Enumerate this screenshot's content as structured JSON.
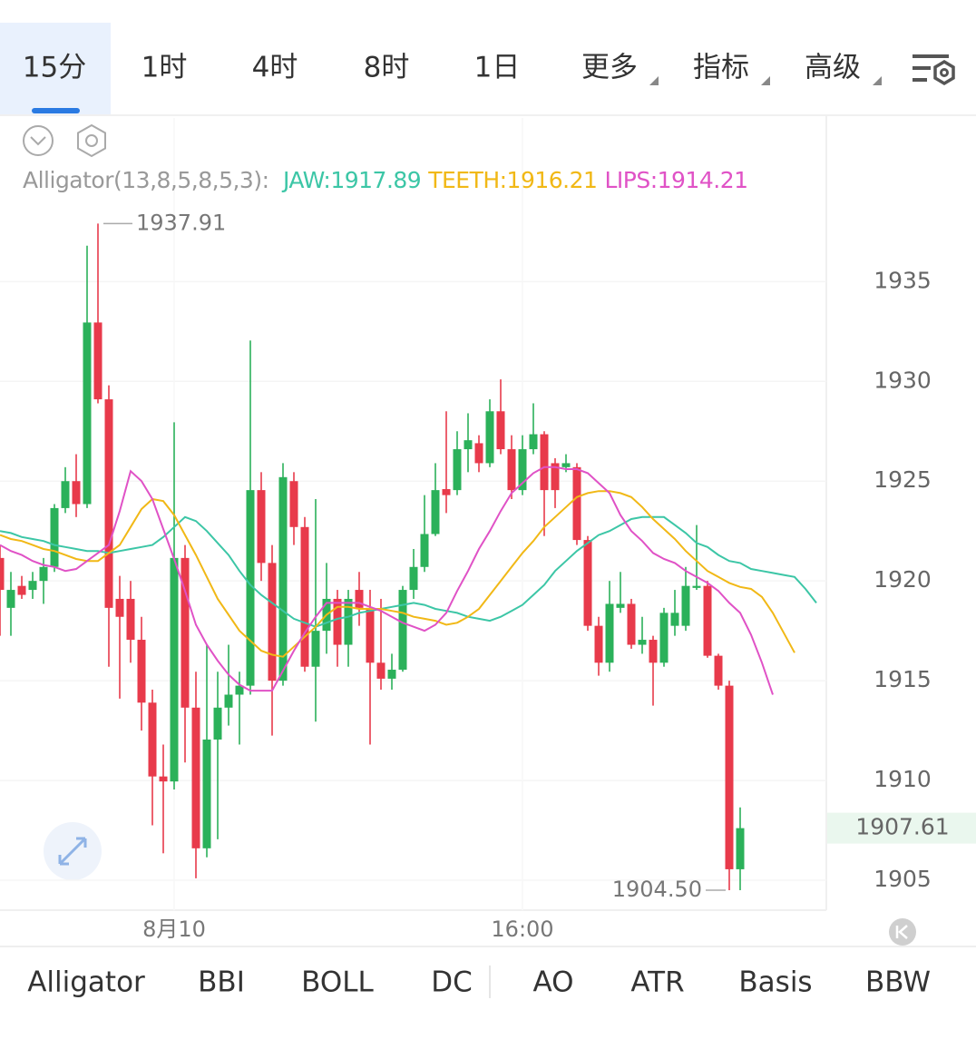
{
  "header": {
    "tabs": [
      "15分",
      "1时",
      "4时",
      "8时",
      "1日",
      "更多",
      "指标",
      "高级"
    ]
  },
  "indicator_tabs": [
    "Alligator",
    "BBI",
    "BOLL",
    "DC",
    "AO",
    "ATR",
    "Basis",
    "BBW"
  ],
  "chart_data": {
    "type": "candlestick",
    "indicator_label": "Alligator(13,8,5,8,5,3):",
    "categories": [
      null,
      null,
      null,
      null,
      null,
      null,
      null,
      null,
      null,
      null,
      null,
      null,
      null,
      null,
      null,
      null,
      "8月10",
      null,
      null,
      null,
      null,
      null,
      null,
      null,
      null,
      null,
      null,
      null,
      null,
      null,
      null,
      null,
      null,
      null,
      null,
      null,
      null,
      null,
      null,
      null,
      null,
      null,
      null,
      null,
      null,
      null,
      null,
      null,
      "16:00",
      null,
      null,
      null,
      null,
      null,
      null,
      null,
      null,
      null,
      null,
      null,
      null,
      null,
      null,
      null,
      null,
      null,
      null,
      null,
      null,
      null,
      null,
      null,
      null,
      null,
      null,
      null
    ],
    "open": [
      1921.15,
      1918.65,
      1919.75,
      1919.55,
      1920,
      1920.7,
      1923.65,
      1925,
      1923.85,
      1932.95,
      1929.1,
      1919.1,
      1919.1,
      1917.05,
      1913.9,
      1910.2,
      1909.95,
      1921.15,
      1913.65,
      1906.6,
      1912.05,
      1913.65,
      1914.3,
      1914.75,
      1924.55,
      1920.9,
      1915,
      1925,
      1922.7,
      1915.7,
      1917.5,
      1919.1,
      1916.8,
      1919.55,
      1918.65,
      1915.9,
      1915.1,
      1915.55,
      1919.55,
      1920.7,
      1922.35,
      1924.6,
      1924.55,
      1926.6,
      1926.9,
      1925.9,
      1928.5,
      1926.6,
      1924.55,
      1926.6,
      1927.35,
      1925.9,
      1925.7,
      1925.7,
      1922.05,
      1917.75,
      1915.9,
      1918.65,
      1918.85,
      1916.8,
      1917.05,
      1915.9,
      1917.75,
      1917.75,
      1919.65,
      1919.75,
      1916.25,
      1914.75,
      1905.55,
      null,
      null,
      null,
      null,
      null,
      null,
      null
    ],
    "high": [
      1921.8,
      1920.45,
      1920.25,
      1920.45,
      1921.15,
      1923.85,
      1925.7,
      1926.35,
      1936.8,
      1937.91,
      1929.8,
      1920.25,
      1920,
      1918.2,
      1914.55,
      1911.8,
      1927.95,
      1921.8,
      1915.45,
      1916.8,
      1915.45,
      1916.8,
      1915.45,
      1932.05,
      1925.45,
      1921.8,
      1925.9,
      1925.45,
      1923.2,
      1924.1,
      1920.9,
      1919.55,
      1919.55,
      1920.45,
      1919.55,
      1919.1,
      1916.35,
      1919.75,
      1921.6,
      1924.3,
      1925.9,
      1928.5,
      1927.5,
      1928.4,
      1927.3,
      1929.1,
      1930.1,
      1927.3,
      1927.3,
      1928.9,
      1927.5,
      1926.15,
      1926.35,
      1925.9,
      1922.25,
      1918.2,
      1920,
      1920.45,
      1919.1,
      1918.2,
      1917.25,
      1918.65,
      1919.55,
      1920.7,
      1922.8,
      1920,
      1916.35,
      1915,
      1908.65,
      null,
      null,
      null,
      null,
      null,
      null,
      null
    ],
    "low": [
      1917.25,
      1917.25,
      1919.1,
      1919.1,
      1918.85,
      1920.45,
      1923.4,
      1923.2,
      1923.65,
      1928.9,
      1915.7,
      1914.1,
      1915.9,
      1912.5,
      1907.75,
      1906.35,
      1909.55,
      1910.9,
      1905.1,
      1906.15,
      1907.05,
      1912.75,
      1911.8,
      1914.3,
      1920,
      1912.25,
      1914.75,
      1921.8,
      1915.45,
      1912.95,
      1916.35,
      1915.7,
      1915.7,
      1917.75,
      1911.8,
      1914.55,
      1914.55,
      1915.45,
      1919.1,
      1920.45,
      1922.25,
      1923.4,
      1924.3,
      1925.45,
      1925.45,
      1925.7,
      1926.35,
      1924.1,
      1924.3,
      1926.35,
      1922.25,
      1923.65,
      1925.45,
      1921.8,
      1917.5,
      1915.25,
      1915.45,
      1918.4,
      1916.6,
      1916.35,
      1913.75,
      1915.7,
      1917.25,
      1917.5,
      1919.55,
      1916.15,
      1914.55,
      1904.5,
      1904.5,
      null,
      null,
      null,
      null,
      null,
      null,
      null
    ],
    "close": [
      1919.55,
      1919.55,
      1919.3,
      1920,
      1920.7,
      1923.65,
      1925,
      1923.85,
      1932.95,
      1929.1,
      1918.65,
      1918.2,
      1917.05,
      1913.9,
      1910.2,
      1909.95,
      1921.15,
      1913.65,
      1906.6,
      1912.05,
      1913.65,
      1914.3,
      1914.75,
      1924.55,
      1920.9,
      1915,
      1925.2,
      1922.7,
      1915.7,
      1917.5,
      1919.1,
      1916.8,
      1919.1,
      1918.65,
      1915.9,
      1915.1,
      1915.55,
      1919.55,
      1920.7,
      1922.35,
      1924.55,
      1924.3,
      1926.6,
      1927.05,
      1925.9,
      1928.5,
      1926.6,
      1924.55,
      1926.6,
      1927.35,
      1924.55,
      1924.55,
      1925.9,
      1922.05,
      1917.75,
      1915.9,
      1918.85,
      1918.85,
      1916.8,
      1917.05,
      1915.9,
      1918.4,
      1918.4,
      1919.75,
      1919.75,
      1916.25,
      1914.75,
      1905.55,
      1907.61,
      null,
      null,
      null,
      null,
      null,
      null,
      null
    ],
    "up_color": "#2bb15a",
    "down_color": "#e83a4b",
    "series": [
      {
        "name": "JAW:1917.89",
        "color": "#3cc6a6",
        "values": [
          1922.5,
          1922.4,
          1922.2,
          1922.1,
          1922.0,
          1921.8,
          1921.7,
          1921.6,
          1921.5,
          1921.5,
          1921.4,
          1921.5,
          1921.6,
          1921.7,
          1921.8,
          1922.2,
          1922.7,
          1923.2,
          1923.0,
          1922.5,
          1921.9,
          1921.3,
          1920.5,
          1919.8,
          1919.3,
          1918.9,
          1918.5,
          1918.1,
          1917.9,
          1917.7,
          1917.9,
          1918.1,
          1918.2,
          1918.4,
          1918.5,
          1918.6,
          1918.7,
          1918.8,
          1918.9,
          1918.8,
          1918.6,
          1918.5,
          1918.4,
          1918.2,
          1918.1,
          1918.0,
          1918.2,
          1918.5,
          1918.8,
          1919.3,
          1919.8,
          1920.5,
          1921.0,
          1921.5,
          1921.9,
          1922.3,
          1922.5,
          1922.8,
          1923.1,
          1923.2,
          1923.2,
          1923.2,
          1922.8,
          1922.4,
          1921.9,
          1921.7,
          1921.3,
          1921.0,
          1920.9,
          1920.6,
          1920.5,
          1920.4,
          1920.3,
          1920.2,
          1919.6,
          1918.9
        ]
      },
      {
        "name": "TEETH:1916.21",
        "color": "#f1b816",
        "values": [
          1922.3,
          1922.1,
          1922.0,
          1921.8,
          1921.6,
          1921.5,
          1921.3,
          1921.1,
          1921.0,
          1921.0,
          1921.4,
          1921.8,
          1922.7,
          1923.6,
          1924.1,
          1924.0,
          1923.3,
          1922.3,
          1921.3,
          1920.2,
          1919.1,
          1918.3,
          1917.5,
          1917.0,
          1916.5,
          1916.3,
          1916.2,
          1916.7,
          1917.2,
          1917.7,
          1918.3,
          1918.7,
          1918.7,
          1918.6,
          1918.6,
          1918.6,
          1918.5,
          1918.4,
          1918.2,
          1918.1,
          1918.0,
          1917.8,
          1917.9,
          1918.2,
          1918.6,
          1919.3,
          1920.0,
          1920.7,
          1921.4,
          1922.0,
          1922.7,
          1923.2,
          1923.7,
          1924.2,
          1924.4,
          1924.5,
          1924.5,
          1924.4,
          1924.2,
          1923.7,
          1923.1,
          1922.6,
          1922.1,
          1921.5,
          1921.0,
          1920.5,
          1920.2,
          1919.9,
          1919.7,
          1919.6,
          1919.2,
          1918.4,
          1917.4,
          1916.4,
          null,
          null
        ]
      },
      {
        "name": "LIPS:1914.21",
        "color": "#e052c6",
        "values": [
          1921.8,
          1921.5,
          1921.3,
          1921.0,
          1920.8,
          1920.7,
          1920.5,
          1920.6,
          1921.0,
          1921.4,
          1921.8,
          1923.5,
          1925.5,
          1925.0,
          1924.1,
          1922.6,
          1921.1,
          1919.5,
          1917.8,
          1916.8,
          1916.0,
          1915.3,
          1914.8,
          1914.5,
          1914.5,
          1914.5,
          1915.5,
          1916.5,
          1917.4,
          1918.2,
          1918.9,
          1918.9,
          1918.9,
          1918.9,
          1918.7,
          1918.5,
          1918.2,
          1917.9,
          1917.7,
          1917.5,
          1917.8,
          1918.4,
          1919.5,
          1920.5,
          1921.6,
          1922.5,
          1923.5,
          1924.4,
          1924.9,
          1925.4,
          1925.7,
          1925.7,
          1925.6,
          1925.6,
          1925.4,
          1924.9,
          1924.4,
          1923.3,
          1922.5,
          1922.0,
          1921.4,
          1921.1,
          1920.9,
          1920.5,
          1920.2,
          1919.9,
          1919.5,
          1918.9,
          1918.4,
          1917.3,
          1915.9,
          1914.3,
          null,
          null,
          null,
          null
        ]
      }
    ],
    "ylim": [
      1903.5,
      1943.2
    ],
    "yticks": [
      1905,
      1910,
      1915,
      1920,
      1925,
      1930,
      1935
    ],
    "grid": true,
    "high_mark": 1937.91,
    "low_mark": {
      "value": 1904.5,
      "label": "1904.50"
    },
    "last_price": 1907.61
  }
}
